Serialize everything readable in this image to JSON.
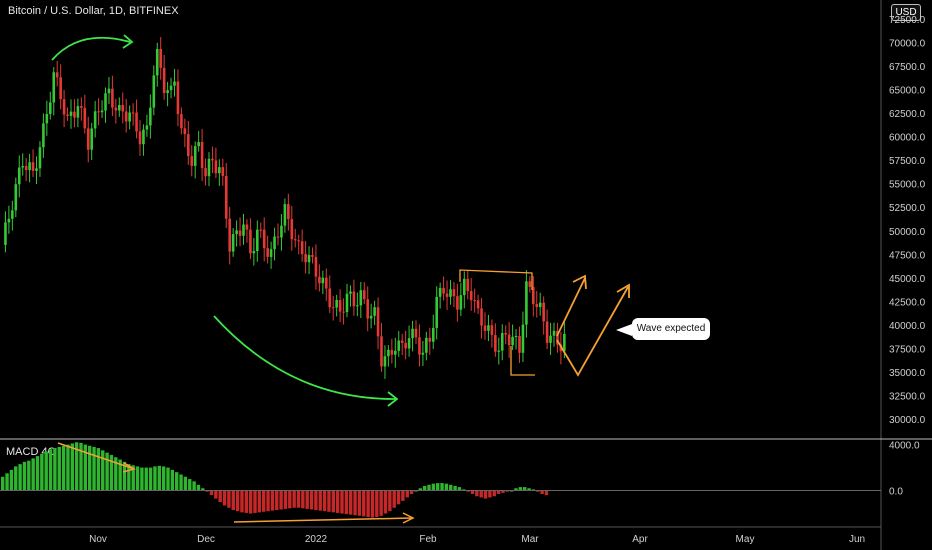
{
  "header": {
    "title": "Bitcoin / U.S. Dollar, 1D, BITFINEX",
    "currency": "USD"
  },
  "macd": {
    "label": "MACD 4C",
    "ticks": [
      "4000.0",
      "0.0"
    ]
  },
  "annotation": {
    "text": "Wave expected"
  },
  "chart_data": {
    "type": "candlestick",
    "y_ticks": [
      "72500.0",
      "70000.0",
      "67500.0",
      "65000.0",
      "62500.0",
      "60000.0",
      "57500.0",
      "55000.0",
      "52500.0",
      "50000.0",
      "47500.0",
      "45000.0",
      "42500.0",
      "40000.0",
      "37500.0",
      "35000.0",
      "32500.0",
      "30000.0"
    ],
    "x_ticks": [
      "Nov",
      "Dec",
      "2022",
      "Feb",
      "Mar",
      "Apr",
      "May",
      "Jun"
    ],
    "ylim": [
      28000,
      74500
    ],
    "colors": {
      "up": "#26a69a",
      "down": "#ef5350",
      "up_bar": "#36c936",
      "down_bar": "#e53935",
      "arrow_green": "#3ee64a",
      "arrow_orange": "#f5a033"
    },
    "price_path": [
      [
        0,
        48500
      ],
      [
        3,
        53000
      ],
      [
        6,
        57500
      ],
      [
        9,
        56000
      ],
      [
        12,
        60500
      ],
      [
        15,
        66500
      ],
      [
        17,
        64500
      ],
      [
        19,
        61500
      ],
      [
        22,
        63500
      ],
      [
        25,
        59500
      ],
      [
        28,
        63000
      ],
      [
        31,
        64500
      ],
      [
        34,
        62500
      ],
      [
        37,
        62500
      ],
      [
        40,
        60000
      ],
      [
        42,
        60500
      ],
      [
        44,
        67000
      ],
      [
        45,
        68500
      ],
      [
        47,
        65500
      ],
      [
        49,
        64500
      ],
      [
        50,
        66000
      ],
      [
        52,
        60500
      ],
      [
        55,
        57500
      ],
      [
        57,
        59000
      ],
      [
        59,
        56000
      ],
      [
        61,
        57500
      ],
      [
        63,
        56500
      ],
      [
        64,
        55000
      ],
      [
        66,
        48500
      ],
      [
        68,
        49500
      ],
      [
        70,
        51000
      ],
      [
        72,
        47500
      ],
      [
        74,
        50000
      ],
      [
        76,
        48500
      ],
      [
        78,
        47500
      ],
      [
        80,
        50000
      ],
      [
        82,
        52000
      ],
      [
        84,
        50000
      ],
      [
        86,
        48000
      ],
      [
        88,
        47500
      ],
      [
        90,
        46500
      ],
      [
        92,
        45000
      ],
      [
        94,
        43500
      ],
      [
        96,
        42000
      ],
      [
        98,
        41500
      ],
      [
        100,
        43000
      ],
      [
        102,
        42500
      ],
      [
        104,
        43000
      ],
      [
        106,
        41500
      ],
      [
        108,
        41000
      ],
      [
        110,
        36500
      ],
      [
        112,
        36500
      ],
      [
        114,
        38000
      ],
      [
        116,
        37500
      ],
      [
        118,
        39000
      ],
      [
        120,
        38500
      ],
      [
        122,
        37000
      ],
      [
        124,
        38500
      ],
      [
        126,
        42500
      ],
      [
        128,
        44000
      ],
      [
        130,
        43000
      ],
      [
        132,
        42500
      ],
      [
        134,
        44000
      ],
      [
        136,
        43500
      ],
      [
        138,
        41000
      ],
      [
        140,
        40000
      ],
      [
        142,
        38500
      ],
      [
        144,
        37500
      ],
      [
        146,
        39000
      ],
      [
        148,
        38500
      ],
      [
        150,
        37500
      ],
      [
        152,
        44000
      ],
      [
        154,
        43000
      ],
      [
        156,
        41500
      ],
      [
        158,
        39000
      ],
      [
        160,
        38500
      ],
      [
        162,
        38000
      ],
      [
        163,
        38500
      ]
    ],
    "macd_values": [
      1200,
      1500,
      1800,
      2100,
      2300,
      2500,
      2600,
      2800,
      3000,
      3200,
      3400,
      3600,
      3700,
      3800,
      3900,
      4000,
      4100,
      4200,
      4150,
      4000,
      3900,
      3800,
      3700,
      3500,
      3300,
      3100,
      2900,
      2700,
      2500,
      2300,
      2200,
      2100,
      2000,
      2000,
      2000,
      2100,
      2150,
      2100,
      2000,
      1800,
      1600,
      1400,
      1200,
      1000,
      800,
      500,
      200,
      -100,
      -400,
      -700,
      -1000,
      -1300,
      -1500,
      -1700,
      -1800,
      -1900,
      -1950,
      -2000,
      -1950,
      -1900,
      -1850,
      -1800,
      -1750,
      -1700,
      -1650,
      -1600,
      -1550,
      -1500,
      -1500,
      -1550,
      -1600,
      -1650,
      -1700,
      -1750,
      -1800,
      -1850,
      -1900,
      -1950,
      -2000,
      -2050,
      -2100,
      -2150,
      -2200,
      -2250,
      -2300,
      -2350,
      -2300,
      -2200,
      -2000,
      -1800,
      -1500,
      -1200,
      -900,
      -600,
      -300,
      0,
      200,
      400,
      500,
      600,
      650,
      650,
      600,
      500,
      400,
      300,
      100,
      -100,
      -300,
      -500,
      -600,
      -700,
      -600,
      -500,
      -300,
      -200,
      -100,
      0,
      200,
      300,
      300,
      200,
      100,
      -100,
      -300,
      -400
    ],
    "macd_ylim": [
      -3000,
      4400
    ]
  }
}
